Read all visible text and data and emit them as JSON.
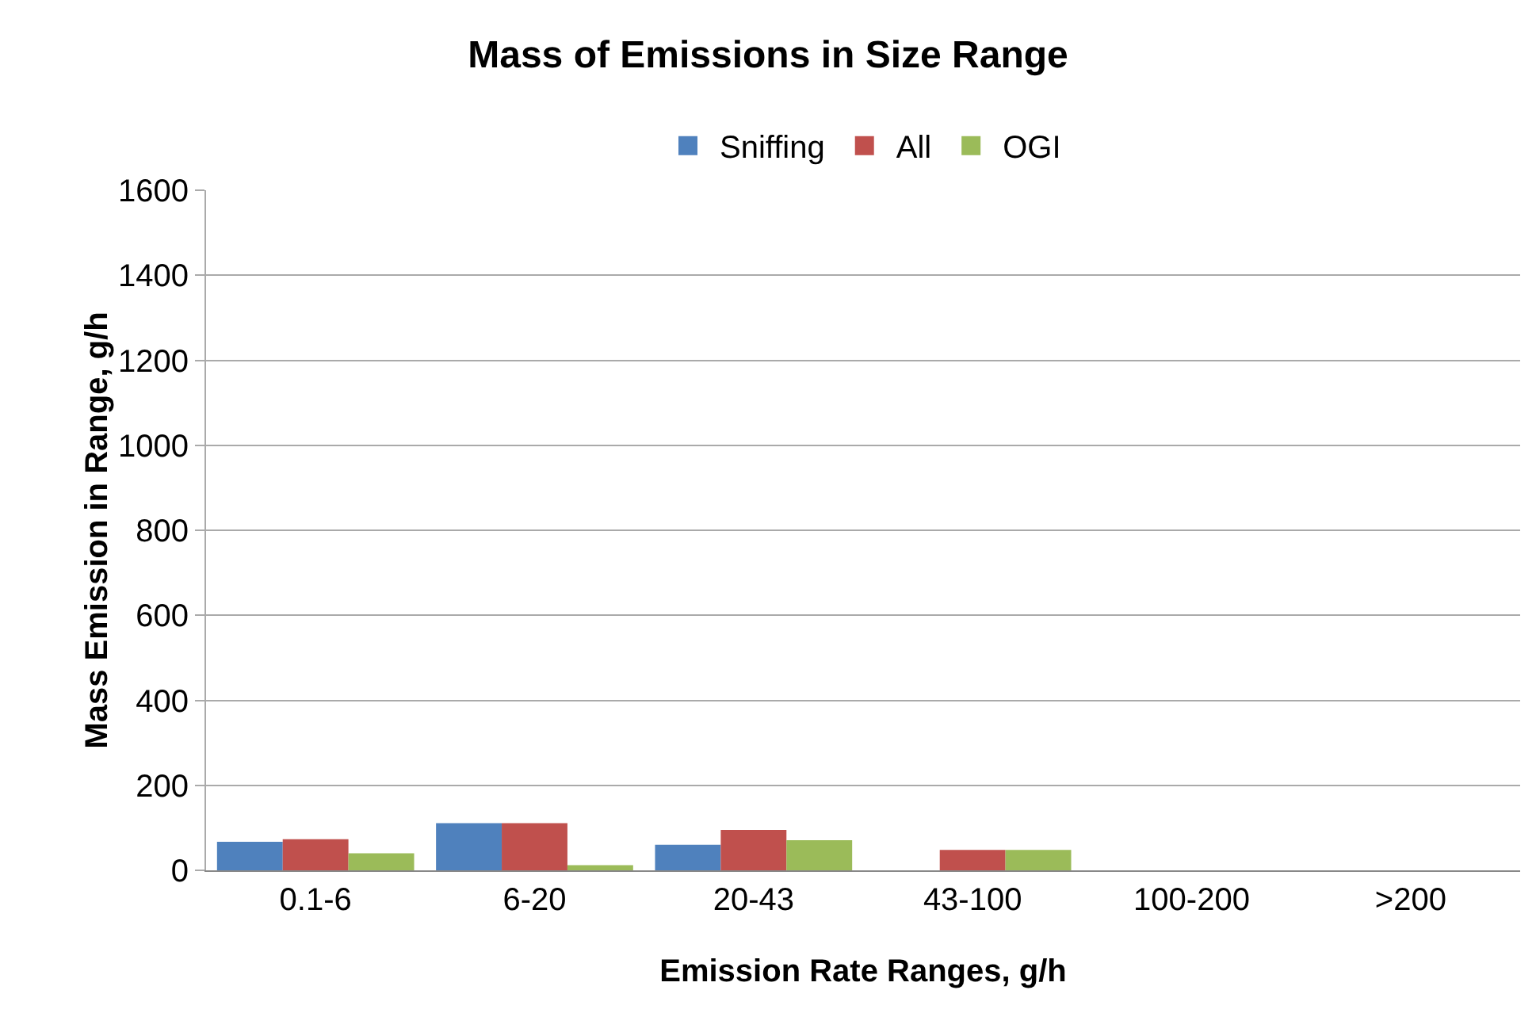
{
  "chart_data": {
    "type": "bar",
    "title": "Mass of Emissions in Size Range",
    "xlabel": "Emission Rate Ranges, g/h",
    "ylabel": "Mass Emission in Range, g/h",
    "categories": [
      "0.1-6",
      "6-20",
      "20-43",
      "43-100",
      "100-200",
      ">200"
    ],
    "series": [
      {
        "name": "Sniffing",
        "color": "#4f81bd",
        "values": [
          67,
          111,
          60,
          0,
          0,
          0
        ]
      },
      {
        "name": "All",
        "color": "#c0504d",
        "values": [
          73,
          111,
          95,
          48,
          0,
          0
        ]
      },
      {
        "name": "OGI",
        "color": "#9bbb59",
        "values": [
          40,
          12,
          71,
          48,
          0,
          0
        ]
      }
    ],
    "ylim": [
      0,
      1600
    ],
    "yticks": [
      0,
      200,
      400,
      600,
      800,
      1000,
      1200,
      1400,
      1600
    ],
    "grid": "y",
    "legend": "top"
  }
}
